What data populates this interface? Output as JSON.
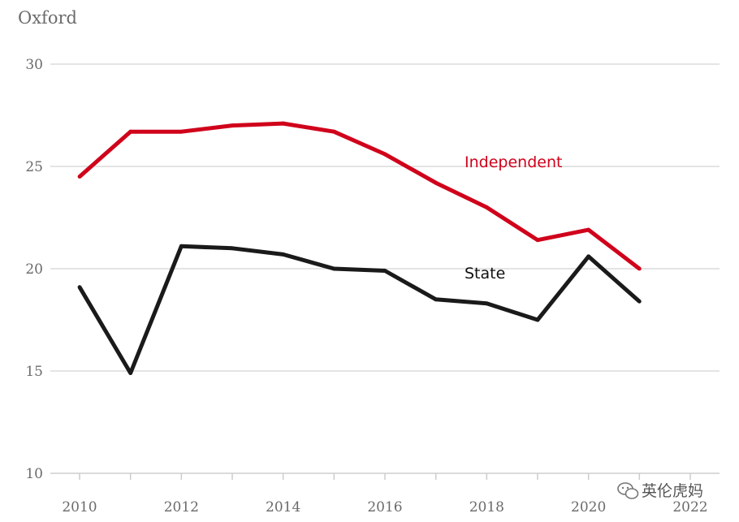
{
  "chart_data": {
    "type": "line",
    "title": "Oxford",
    "x": [
      2010,
      2011,
      2012,
      2013,
      2014,
      2015,
      2016,
      2017,
      2018,
      2019,
      2020,
      2021
    ],
    "series": [
      {
        "name": "Independent",
        "color": "#d0021b",
        "values": [
          24.5,
          26.7,
          26.7,
          27.0,
          27.1,
          26.7,
          25.6,
          24.2,
          23.0,
          21.4,
          21.9,
          20.0
        ]
      },
      {
        "name": "State",
        "color": "#1a1a1a",
        "values": [
          19.1,
          14.9,
          21.1,
          21.0,
          20.7,
          20.0,
          19.9,
          18.5,
          18.3,
          17.5,
          20.6,
          18.4
        ]
      }
    ],
    "xticks": [
      "2010",
      "2012",
      "2014",
      "2016",
      "2018",
      "2020",
      "2022"
    ],
    "yticks": [
      "10",
      "15",
      "20",
      "25",
      "30"
    ],
    "xlim": [
      2010,
      2022
    ],
    "ylim": [
      10,
      30
    ],
    "xlabel": "",
    "ylabel": "",
    "grid": true
  },
  "watermark": {
    "icon": "wechat-icon",
    "text": "英伦虎妈"
  }
}
